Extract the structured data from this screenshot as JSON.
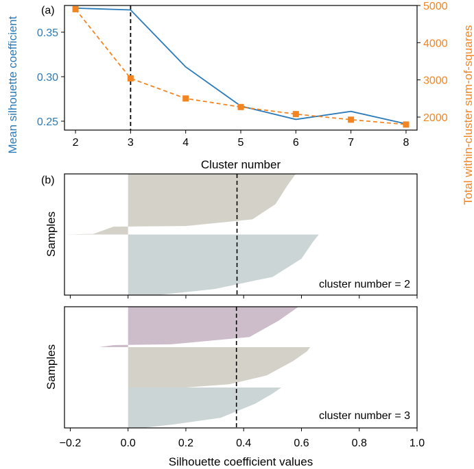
{
  "panel_labels": {
    "a": "(a)",
    "b": "(b)"
  },
  "colors": {
    "silhouette": "#2a7ab8",
    "wss": "#f28522",
    "cluster_grey": "#ccd5d6",
    "cluster_beige": "#d4d2c8",
    "cluster_purple": "#cdbcc9",
    "axis": "#000000"
  },
  "chart_data": [
    {
      "type": "line",
      "panel": "(a)",
      "xlabel": "Cluster number",
      "x": [
        2,
        3,
        4,
        5,
        6,
        7,
        8
      ],
      "xlim": [
        1.8,
        8.2
      ],
      "xticks": [
        "2",
        "3",
        "4",
        "5",
        "6",
        "7",
        "8"
      ],
      "series": [
        {
          "axis": "left",
          "label": "Mean silhouette coefficient",
          "values": [
            0.377,
            0.375,
            0.311,
            0.267,
            0.252,
            0.261,
            0.247
          ],
          "ylim": [
            0.24,
            0.38
          ],
          "yticks": [
            "0.25",
            "0.30",
            "0.35"
          ],
          "style": "solid",
          "color": "#2a7ab8"
        },
        {
          "axis": "right",
          "label": "Total within-cluster sum-of-squares",
          "values": [
            4900,
            3040,
            2500,
            2270,
            2080,
            1930,
            1800
          ],
          "ylim": [
            1650,
            5000
          ],
          "yticks": [
            "2000",
            "3000",
            "4000",
            "5000"
          ],
          "style": "dashed",
          "marker": "square",
          "color": "#f28522"
        }
      ],
      "vline": {
        "x": 3,
        "style": "dashed",
        "color": "#000000"
      },
      "grid": false
    },
    {
      "type": "area",
      "panel": "(b)",
      "subplots": [
        {
          "annotation": "cluster number = 2",
          "ylabel": "Samples",
          "mean_line": 0.377,
          "clusters": [
            {
              "color": "#d4d2c8",
              "profile": [
                [
                  0.0,
                  0.58
                ],
                [
                  0.2,
                  0.55
                ],
                [
                  0.5,
                  0.51
                ],
                [
                  0.75,
                  0.43
                ],
                [
                  0.86,
                  0.2
                ],
                [
                  0.87,
                  -0.05
                ],
                [
                  0.99,
                  -0.12
                ],
                [
                  1.0,
                  -0.22
                ]
              ]
            },
            {
              "color": "#ccd5d6",
              "profile": [
                [
                  0.0,
                  0.66
                ],
                [
                  0.12,
                  0.64
                ],
                [
                  0.4,
                  0.6
                ],
                [
                  0.7,
                  0.5
                ],
                [
                  0.9,
                  0.3
                ],
                [
                  1.0,
                  0.1
                ]
              ]
            }
          ]
        },
        {
          "annotation": "cluster number = 3",
          "ylabel": "Samples",
          "mean_line": 0.375,
          "clusters": [
            {
              "color": "#cdbcc9",
              "profile": [
                [
                  0.0,
                  0.59
                ],
                [
                  0.35,
                  0.52
                ],
                [
                  0.75,
                  0.42
                ],
                [
                  0.93,
                  0.15
                ],
                [
                  0.95,
                  -0.05
                ],
                [
                  1.0,
                  -0.1
                ]
              ]
            },
            {
              "color": "#d4d2c8",
              "profile": [
                [
                  0.0,
                  0.63
                ],
                [
                  0.1,
                  0.62
                ],
                [
                  0.35,
                  0.57
                ],
                [
                  0.7,
                  0.48
                ],
                [
                  0.92,
                  0.35
                ],
                [
                  1.0,
                  0.2
                ]
              ]
            },
            {
              "color": "#ccd5d6",
              "profile": [
                [
                  0.0,
                  0.53
                ],
                [
                  0.15,
                  0.5
                ],
                [
                  0.4,
                  0.44
                ],
                [
                  0.75,
                  0.32
                ],
                [
                  0.92,
                  0.15
                ],
                [
                  1.0,
                  0.05
                ]
              ]
            }
          ]
        }
      ],
      "xlabel": "Silhouette coefficient values",
      "xlim": [
        -0.22,
        1.0
      ],
      "xticks": [
        "−0.2",
        "0.0",
        "0.2",
        "0.4",
        "0.6",
        "0.8",
        "1.0"
      ],
      "xtick_values": [
        -0.2,
        0.0,
        0.2,
        0.4,
        0.6,
        0.8,
        1.0
      ]
    }
  ]
}
